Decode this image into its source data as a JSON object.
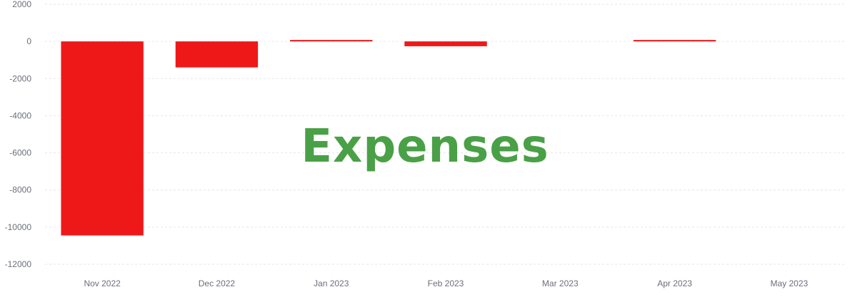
{
  "chart_data": {
    "type": "bar",
    "title": "Expenses",
    "categories": [
      "Nov 2022",
      "Dec 2022",
      "Jan 2023",
      "Feb 2023",
      "Mar 2023",
      "Apr 2023",
      "May 2023"
    ],
    "series": [
      {
        "values": [
          -10450,
          -1400,
          60,
          -260,
          0,
          30,
          0
        ]
      }
    ],
    "ylim": [
      -12000,
      2000
    ],
    "yticks": [
      2000,
      0,
      -2000,
      -4000,
      -6000,
      -8000,
      -10000,
      -12000
    ],
    "grid": true,
    "xlabel": "",
    "ylabel": ""
  },
  "colors": {
    "bar": "#ef1818",
    "title": "#4aa046",
    "axis_text": "#6b6f7a",
    "grid": "#e6e6e6"
  }
}
